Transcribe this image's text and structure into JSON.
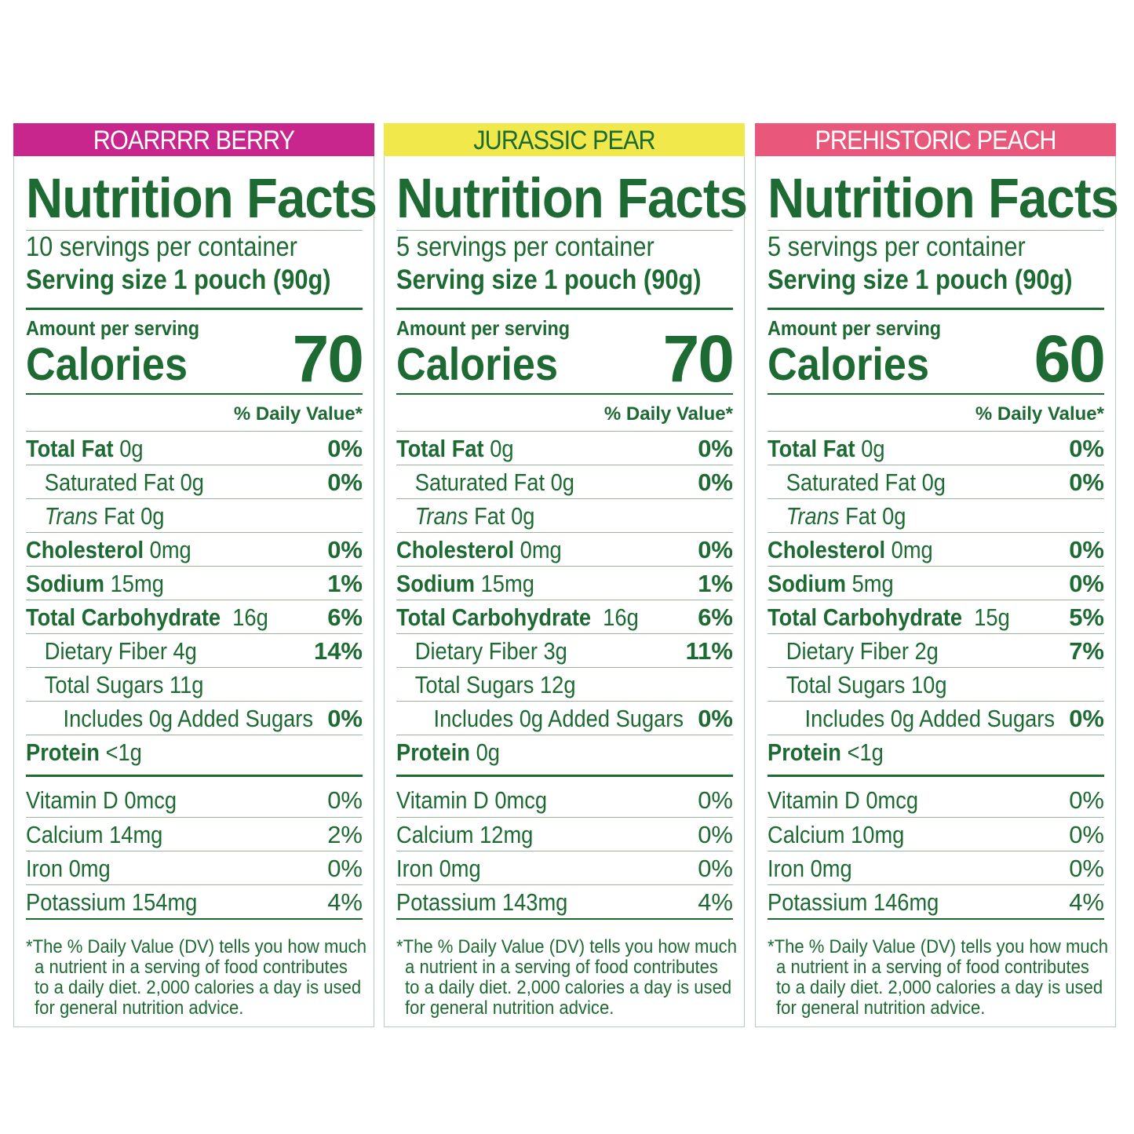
{
  "colors": {
    "text": "#1e6a33",
    "berry": "#c8268d",
    "pear": "#f1e94b",
    "peach": "#e9587a"
  },
  "panels": [
    {
      "flavor": "ROARRRR BERRY",
      "title": "Nutrition Facts",
      "servings": "10 servings per container",
      "serving_size": "Serving size 1 pouch (90g)",
      "amount_label": "Amount per serving",
      "calories_label": "Calories",
      "calories": "70",
      "dv_header": "% Daily Value*",
      "total_fat": {
        "label": "Total Fat",
        "amount": "0g",
        "pct": "0%"
      },
      "sat_fat": {
        "label": "Saturated Fat 0g",
        "pct": "0%"
      },
      "trans_fat": {
        "label_italic": "Trans",
        "label": "Fat 0g"
      },
      "cholesterol": {
        "label": "Cholesterol",
        "amount": "0mg",
        "pct": "0%"
      },
      "sodium": {
        "label": "Sodium",
        "amount": "15mg",
        "pct": "1%"
      },
      "carb": {
        "label": "Total Carbohydrate",
        "amount": "16g",
        "pct": "6%"
      },
      "fiber": {
        "label": "Dietary Fiber 4g",
        "pct": "14%"
      },
      "sugars": {
        "label": "Total Sugars 11g"
      },
      "added": {
        "label": "Includes 0g Added Sugars",
        "pct": "0%"
      },
      "protein": {
        "label": "Protein",
        "amount": "<1g"
      },
      "vitd": {
        "label": "Vitamin D 0mcg",
        "pct": "0%"
      },
      "calcium": {
        "label": "Calcium 14mg",
        "pct": "2%"
      },
      "iron": {
        "label": "Iron 0mg",
        "pct": "0%"
      },
      "potassium": {
        "label": "Potassium 154mg",
        "pct": "4%"
      },
      "footnote": [
        "*The % Daily Value (DV) tells you how much",
        "a nutrient in a serving of food contributes",
        "to a daily diet. 2,000 calories a day is used",
        "for general nutrition advice."
      ]
    },
    {
      "flavor": "JURASSIC PEAR",
      "title": "Nutrition Facts",
      "servings": "5 servings per container",
      "serving_size": "Serving size 1 pouch (90g)",
      "amount_label": "Amount per serving",
      "calories_label": "Calories",
      "calories": "70",
      "dv_header": "% Daily Value*",
      "total_fat": {
        "label": "Total Fat",
        "amount": "0g",
        "pct": "0%"
      },
      "sat_fat": {
        "label": "Saturated Fat 0g",
        "pct": "0%"
      },
      "trans_fat": {
        "label_italic": "Trans",
        "label": "Fat 0g"
      },
      "cholesterol": {
        "label": "Cholesterol",
        "amount": "0mg",
        "pct": "0%"
      },
      "sodium": {
        "label": "Sodium",
        "amount": "15mg",
        "pct": "1%"
      },
      "carb": {
        "label": "Total Carbohydrate",
        "amount": "16g",
        "pct": "6%"
      },
      "fiber": {
        "label": "Dietary Fiber 3g",
        "pct": "11%"
      },
      "sugars": {
        "label": "Total Sugars 12g"
      },
      "added": {
        "label": "Includes 0g Added Sugars",
        "pct": "0%"
      },
      "protein": {
        "label": "Protein",
        "amount": "0g"
      },
      "vitd": {
        "label": "Vitamin D 0mcg",
        "pct": "0%"
      },
      "calcium": {
        "label": "Calcium 12mg",
        "pct": "0%"
      },
      "iron": {
        "label": "Iron 0mg",
        "pct": "0%"
      },
      "potassium": {
        "label": "Potassium 143mg",
        "pct": "4%"
      },
      "footnote": [
        "*The % Daily Value (DV) tells you how much",
        "a nutrient in a serving of food contributes",
        "to a daily diet. 2,000 calories a day is used",
        "for general nutrition advice."
      ]
    },
    {
      "flavor": "PREHISTORIC PEACH",
      "title": "Nutrition Facts",
      "servings": "5 servings per container",
      "serving_size": "Serving size 1 pouch (90g)",
      "amount_label": "Amount per serving",
      "calories_label": "Calories",
      "calories": "60",
      "dv_header": "% Daily Value*",
      "total_fat": {
        "label": "Total Fat",
        "amount": "0g",
        "pct": "0%"
      },
      "sat_fat": {
        "label": "Saturated Fat 0g",
        "pct": "0%"
      },
      "trans_fat": {
        "label_italic": "Trans",
        "label": "Fat 0g"
      },
      "cholesterol": {
        "label": "Cholesterol",
        "amount": "0mg",
        "pct": "0%"
      },
      "sodium": {
        "label": "Sodium",
        "amount": "5mg",
        "pct": "0%"
      },
      "carb": {
        "label": "Total Carbohydrate",
        "amount": "15g",
        "pct": "5%"
      },
      "fiber": {
        "label": "Dietary Fiber 2g",
        "pct": "7%"
      },
      "sugars": {
        "label": "Total Sugars 10g"
      },
      "added": {
        "label": "Includes 0g Added Sugars",
        "pct": "0%"
      },
      "protein": {
        "label": "Protein",
        "amount": "<1g"
      },
      "vitd": {
        "label": "Vitamin D 0mcg",
        "pct": "0%"
      },
      "calcium": {
        "label": "Calcium 10mg",
        "pct": "0%"
      },
      "iron": {
        "label": "Iron 0mg",
        "pct": "0%"
      },
      "potassium": {
        "label": "Potassium 146mg",
        "pct": "4%"
      },
      "footnote": [
        "*The % Daily Value (DV) tells you how much",
        "a nutrient in a serving of food contributes",
        "to a daily diet. 2,000 calories a day is used",
        "for general nutrition advice."
      ]
    }
  ]
}
